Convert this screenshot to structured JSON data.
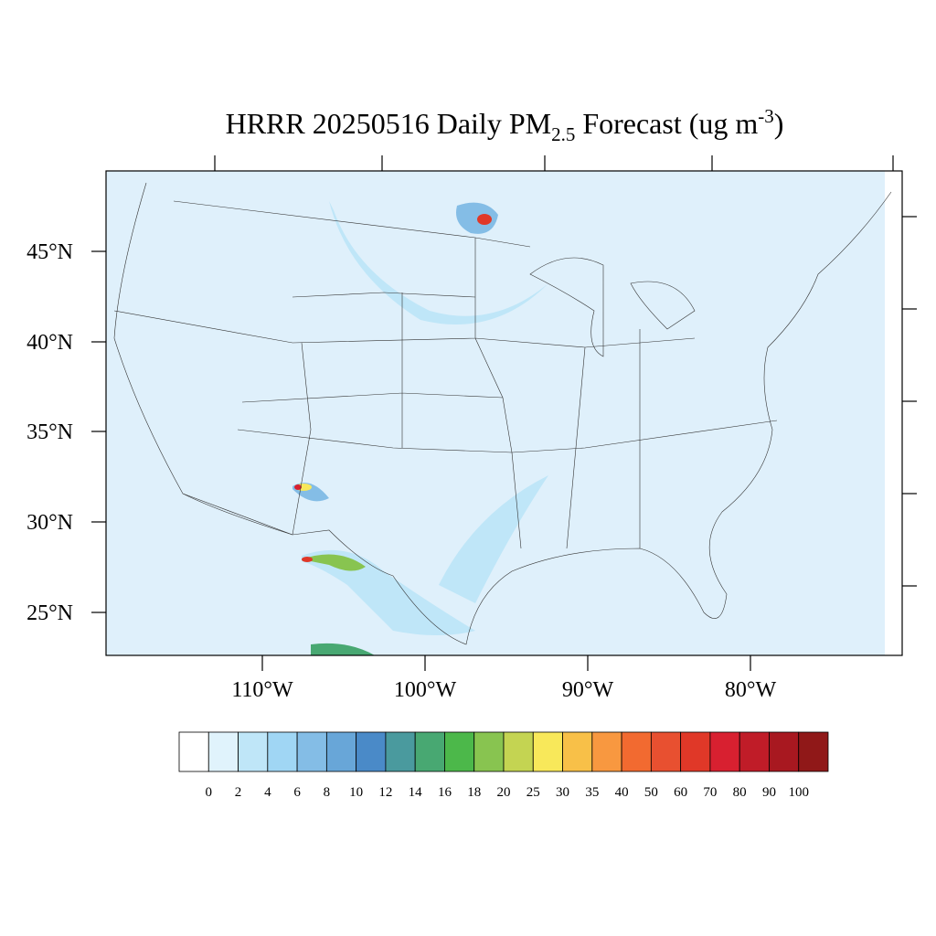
{
  "title": {
    "parts": [
      "HRRR 20250516 Daily PM",
      "2.5",
      " Forecast (ug m",
      "-3",
      ")"
    ]
  },
  "map": {
    "lat_labels": [
      "45°N",
      "40°N",
      "35°N",
      "30°N",
      "25°N"
    ],
    "lon_labels": [
      "110°W",
      "100°W",
      "90°W",
      "80°W"
    ]
  },
  "colorbar": {
    "colors": [
      "#ffffff",
      "#e0f3fc",
      "#bfe6f8",
      "#a0d6f4",
      "#84bde6",
      "#68a6d8",
      "#4a8ac8",
      "#4a9a9e",
      "#48a872",
      "#4cb84a",
      "#88c450",
      "#c4d452",
      "#f8e85a",
      "#f8c048",
      "#f89840",
      "#f26a30",
      "#e85030",
      "#e03828",
      "#d82030",
      "#c01c28",
      "#a81820",
      "#901818"
    ],
    "labels": [
      0,
      2,
      4,
      6,
      8,
      10,
      12,
      14,
      16,
      18,
      20,
      25,
      30,
      35,
      40,
      50,
      60,
      70,
      80,
      90,
      100
    ]
  }
}
